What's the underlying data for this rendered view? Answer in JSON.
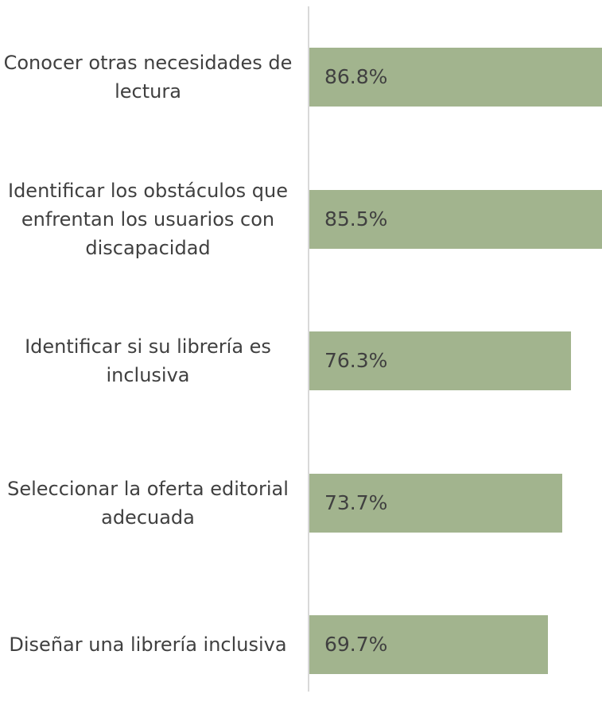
{
  "chart_data": {
    "type": "bar",
    "orientation": "horizontal",
    "categories": [
      "Conocer otras necesidades de lectura",
      "Identificar los obstáculos que enfrentan los usuarios con discapacidad",
      "Identificar si su librería es inclusiva",
      "Seleccionar la oferta editorial adecuada",
      "Diseñar una librería inclusiva"
    ],
    "values": [
      86.8,
      85.5,
      76.3,
      73.7,
      69.7
    ],
    "value_labels": [
      "86.8%",
      "85.5%",
      "76.3%",
      "73.7%",
      "69.7%"
    ],
    "color": "#a2b48e"
  }
}
